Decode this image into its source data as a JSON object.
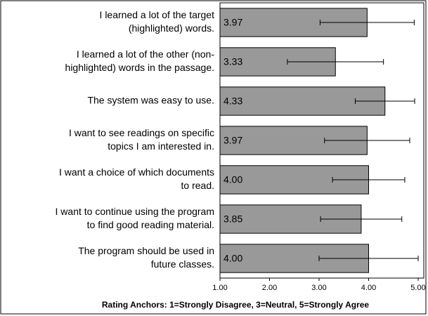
{
  "chart_data": {
    "type": "bar",
    "orientation": "horizontal",
    "xlabel": "Rating Anchors: 1=Strongly Disagree, 3=Neutral, 5=Strongly Agree",
    "categories": [
      [
        "I learned a lot of the target",
        "(highlighted) words."
      ],
      [
        "I learned a lot of the other (non-",
        "highlighted) words in the passage."
      ],
      [
        "The system was easy to use."
      ],
      [
        "I want to see readings on specific",
        "topics I am interested in."
      ],
      [
        "I want a choice of which documents",
        "to read."
      ],
      [
        "I want to continue using the program",
        "to find good reading material."
      ],
      [
        "The program should be used in",
        "future classes."
      ]
    ],
    "values": [
      3.97,
      3.33,
      4.33,
      3.97,
      4.0,
      3.85,
      4.0
    ],
    "value_labels": [
      "3.97",
      "3.33",
      "4.33",
      "3.97",
      "4.00",
      "3.85",
      "4.00"
    ],
    "errors": [
      0.95,
      0.97,
      0.6,
      0.86,
      0.73,
      0.82,
      1.0
    ],
    "color": "#999999",
    "xlim": [
      1,
      5
    ],
    "xticks": [
      {
        "value": 1,
        "label": "1.00"
      },
      {
        "value": 2,
        "label": "2.00"
      },
      {
        "value": 3,
        "label": "3.00"
      },
      {
        "value": 4,
        "label": "4.00"
      },
      {
        "value": 5,
        "label": "5.00"
      }
    ]
  }
}
